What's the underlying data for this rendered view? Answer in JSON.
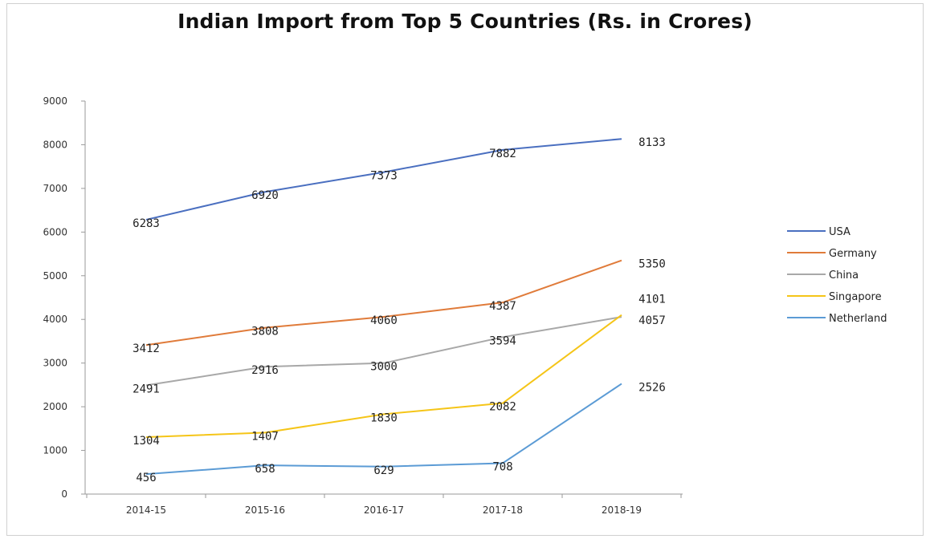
{
  "chart_data": {
    "type": "line",
    "title": "Indian Import from Top 5 Countries (Rs. in Crores)",
    "categories": [
      "2014-15",
      "2015-16",
      "2016-17",
      "2017-18",
      "2018-19"
    ],
    "ylim": [
      0,
      9000
    ],
    "yticks": [
      0,
      1000,
      2000,
      3000,
      4000,
      5000,
      6000,
      7000,
      8000,
      9000
    ],
    "grid": false,
    "legend_position": "right",
    "series": [
      {
        "name": "USA",
        "color": "#4a6fc0",
        "values": [
          6283,
          6920,
          7373,
          7882,
          8133
        ]
      },
      {
        "name": "Germany",
        "color": "#e07b3a",
        "values": [
          3412,
          3808,
          4060,
          4387,
          5350
        ]
      },
      {
        "name": "China",
        "color": "#a8a8a8",
        "values": [
          2491,
          2916,
          3000,
          3594,
          4057
        ]
      },
      {
        "name": "Singapore",
        "color": "#f5c518",
        "values": [
          1304,
          1407,
          1830,
          2082,
          4101
        ]
      },
      {
        "name": "Netherland",
        "color": "#5b9bd5",
        "values": [
          456,
          658,
          629,
          708,
          2526
        ]
      }
    ]
  }
}
